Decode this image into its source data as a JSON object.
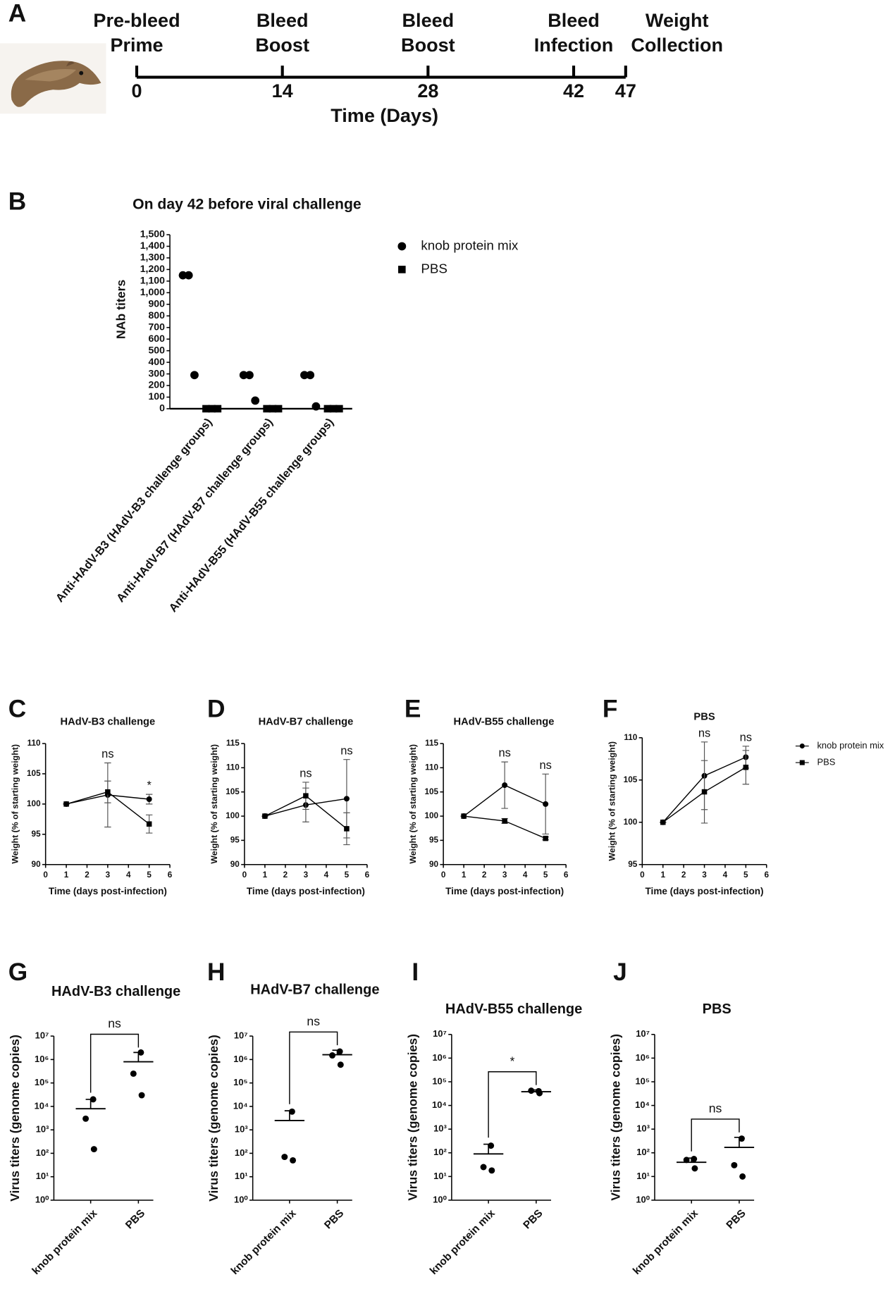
{
  "chart_data": [
    {
      "type": "timeline",
      "panel": "A",
      "xlabel": "Time (Days)",
      "xlim": [
        0,
        47
      ],
      "xticks": [
        0,
        14,
        28,
        42,
        47
      ],
      "events": [
        {
          "lines": [
            "Pre-bleed",
            "Prime"
          ]
        },
        {
          "lines": [
            "Bleed",
            "Boost"
          ]
        },
        {
          "lines": [
            "Bleed",
            "Boost"
          ]
        },
        {
          "lines": [
            "Bleed",
            "Infection"
          ]
        },
        {
          "lines": [
            "Weight",
            "Collection"
          ]
        }
      ]
    },
    {
      "type": "dot",
      "panel": "B",
      "title": "On day 42 before viral challenge",
      "ylabel": "NAb titers",
      "categories": [
        "Anti-HAdV-B3 (HAdV-B3 challenge groups)",
        "Anti-HAdV-B7 (HAdV-B7 challenge groups)",
        "Anti-HAdV-B55 (HAdV-B55 challenge groups)"
      ],
      "series": [
        {
          "name": "knob protein mix",
          "marker": "circle",
          "color": "#000000",
          "values": [
            [
              1150,
              1150,
              290
            ],
            [
              290,
              290,
              70
            ],
            [
              290,
              290,
              20
            ]
          ]
        },
        {
          "name": "PBS",
          "marker": "square",
          "color": "#000000",
          "values": [
            [
              0,
              0,
              0
            ],
            [
              0,
              0,
              0
            ],
            [
              0,
              0,
              0
            ]
          ]
        }
      ],
      "ylim": [
        0,
        1500
      ],
      "yticks": [
        0,
        100,
        200,
        300,
        400,
        500,
        600,
        700,
        800,
        900,
        {
          "value": 1000,
          "label": "1,000"
        },
        {
          "value": 1100,
          "label": "1,100"
        },
        {
          "value": 1200,
          "label": "1,200"
        },
        {
          "value": 1300,
          "label": "1,300"
        },
        {
          "value": 1400,
          "label": "1,400"
        },
        {
          "value": 1500,
          "label": "1,500"
        }
      ],
      "legend": "top-right"
    },
    {
      "type": "line",
      "panel": "C",
      "title": "HAdV-B3 challenge",
      "xlabel": "Time (days post-infection)",
      "ylabel": "Weight (% of starting weight)",
      "x": [
        1,
        3,
        5
      ],
      "xlim": [
        0,
        6
      ],
      "xticks": [
        0,
        1,
        2,
        3,
        4,
        5,
        6
      ],
      "ylim": [
        90,
        110
      ],
      "yticks": [
        90,
        95,
        100,
        105,
        110
      ],
      "series": [
        {
          "marker": "circle",
          "color": "#000000",
          "values": [
            100,
            101.5,
            100.8
          ],
          "errors": [
            0,
            5.3,
            0.8
          ]
        },
        {
          "marker": "square",
          "color": "#000000",
          "values": [
            100,
            102,
            96.7
          ],
          "errors": [
            0,
            1.8,
            1.5
          ]
        }
      ],
      "annotations": [
        {
          "x": 3,
          "text": "ns"
        },
        {
          "x": 5,
          "text": "*"
        }
      ]
    },
    {
      "type": "line",
      "panel": "D",
      "title": "HAdV-B7 challenge",
      "xlabel": "Time (days post-infection)",
      "ylabel": "Weight (% of starting weight)",
      "x": [
        1,
        3,
        5
      ],
      "xlim": [
        0,
        6
      ],
      "xticks": [
        0,
        1,
        2,
        3,
        4,
        5,
        6
      ],
      "ylim": [
        90,
        115
      ],
      "yticks": [
        90,
        95,
        100,
        105,
        110,
        115
      ],
      "series": [
        {
          "marker": "circle",
          "color": "#000000",
          "values": [
            100,
            102.3,
            103.6
          ],
          "errors": [
            0,
            3.5,
            8.1
          ]
        },
        {
          "marker": "square",
          "color": "#000000",
          "values": [
            100,
            104.2,
            97.4
          ],
          "errors": [
            0,
            2.8,
            3.3
          ]
        }
      ],
      "annotations": [
        {
          "x": 3,
          "text": "ns"
        },
        {
          "x": 5,
          "text": "ns"
        }
      ]
    },
    {
      "type": "line",
      "panel": "E",
      "title": "HAdV-B55 challenge",
      "xlabel": "Time (days post-infection)",
      "ylabel": "Weight (% of starting weight)",
      "x": [
        1,
        3,
        5
      ],
      "xlim": [
        0,
        6
      ],
      "xticks": [
        0,
        1,
        2,
        3,
        4,
        5,
        6
      ],
      "ylim": [
        90,
        115
      ],
      "yticks": [
        90,
        95,
        100,
        105,
        110,
        115
      ],
      "series": [
        {
          "marker": "circle",
          "color": "#000000",
          "values": [
            100,
            106.4,
            102.5
          ],
          "errors": [
            0,
            4.8,
            6.2
          ]
        },
        {
          "marker": "square",
          "color": "#000000",
          "values": [
            100,
            99,
            95.4
          ],
          "errors": [
            0,
            0.5,
            0.3
          ]
        }
      ],
      "annotations": [
        {
          "x": 3,
          "text": "ns"
        },
        {
          "x": 5,
          "text": "ns"
        }
      ]
    },
    {
      "type": "line",
      "panel": "F",
      "title": "PBS",
      "xlabel": "Time (days post-infection)",
      "ylabel": "Weight (% of starting weight)",
      "x": [
        1,
        3,
        5
      ],
      "xlim": [
        0,
        6
      ],
      "xticks": [
        0,
        1,
        2,
        3,
        4,
        5,
        6
      ],
      "ylim": [
        95,
        110
      ],
      "yticks": [
        95,
        100,
        105,
        110
      ],
      "series": [
        {
          "name": "knob protein mix",
          "marker": "circle",
          "color": "#000000",
          "values": [
            100,
            105.5,
            107.7
          ],
          "errors": [
            0,
            4,
            1.3
          ]
        },
        {
          "name": "PBS",
          "marker": "square",
          "color": "#000000",
          "values": [
            100,
            103.6,
            106.5
          ],
          "errors": [
            0,
            3.7,
            2
          ]
        }
      ],
      "annotations": [
        {
          "x": 3,
          "text": "ns"
        },
        {
          "x": 5,
          "text": "ns"
        }
      ],
      "legend": "right"
    },
    {
      "type": "strip",
      "panel": "G",
      "title": "HAdV-B3 challenge",
      "ylabel": "Virus titers (genome copies)",
      "log_scale": true,
      "categories": [
        "knob protein mix",
        "PBS"
      ],
      "values": [
        [
          20000,
          3000,
          150
        ],
        [
          2000000,
          250000,
          30000
        ]
      ],
      "means": [
        8000,
        800000
      ],
      "error_top": [
        20000,
        2000000
      ],
      "annotation": "ns",
      "color": "#000000",
      "ylim": [
        1,
        10000000
      ],
      "yticks": [
        {
          "value": 1,
          "label": "10⁰"
        },
        {
          "value": 10,
          "label": "10¹"
        },
        {
          "value": 100,
          "label": "10²"
        },
        {
          "value": 1000,
          "label": "10³"
        },
        {
          "value": 10000,
          "label": "10⁴"
        },
        {
          "value": 100000,
          "label": "10⁵"
        },
        {
          "value": 1000000,
          "label": "10⁶"
        },
        {
          "value": 10000000,
          "label": "10⁷"
        }
      ]
    },
    {
      "type": "strip",
      "panel": "H",
      "title": "HAdV-B7 challenge",
      "ylabel": "Virus titers (genome copies)",
      "log_scale": true,
      "categories": [
        "knob protein mix",
        "PBS"
      ],
      "values": [
        [
          6000,
          70,
          50
        ],
        [
          2200000,
          1500000,
          600000
        ]
      ],
      "means": [
        2500,
        1600000
      ],
      "error_top": [
        6500,
        2500000
      ],
      "annotation": "ns",
      "color": "#000000",
      "ylim": [
        1,
        10000000
      ],
      "yticks": [
        {
          "value": 1,
          "label": "10⁰"
        },
        {
          "value": 10,
          "label": "10¹"
        },
        {
          "value": 100,
          "label": "10²"
        },
        {
          "value": 1000,
          "label": "10³"
        },
        {
          "value": 10000,
          "label": "10⁴"
        },
        {
          "value": 100000,
          "label": "10⁵"
        },
        {
          "value": 1000000,
          "label": "10⁶"
        },
        {
          "value": 10000000,
          "label": "10⁷"
        }
      ]
    },
    {
      "type": "strip",
      "panel": "I",
      "title": "HAdV-B55 challenge",
      "ylabel": "Virus titers (genome copies)",
      "log_scale": true,
      "categories": [
        "knob protein mix",
        "PBS"
      ],
      "values": [
        [
          200,
          25,
          18
        ],
        [
          40000,
          42000,
          33000
        ]
      ],
      "means": [
        90,
        38000
      ],
      "error_top": [
        230,
        45000
      ],
      "annotation": "*",
      "color": "#000000",
      "ylim": [
        1,
        10000000
      ],
      "yticks": [
        {
          "value": 1,
          "label": "10⁰"
        },
        {
          "value": 10,
          "label": "10¹"
        },
        {
          "value": 100,
          "label": "10²"
        },
        {
          "value": 1000,
          "label": "10³"
        },
        {
          "value": 10000,
          "label": "10⁴"
        },
        {
          "value": 100000,
          "label": "10⁵"
        },
        {
          "value": 1000000,
          "label": "10⁶"
        },
        {
          "value": 10000000,
          "label": "10⁷"
        }
      ]
    },
    {
      "type": "strip",
      "panel": "J",
      "title": "PBS",
      "ylabel": "Virus titers (genome copies)",
      "log_scale": true,
      "categories": [
        "knob protein mix",
        "PBS"
      ],
      "values": [
        [
          55,
          50,
          22
        ],
        [
          400,
          30,
          10
        ]
      ],
      "means": [
        40,
        170
      ],
      "error_top": [
        60,
        450
      ],
      "annotation": "ns",
      "color": "#000000",
      "ylim": [
        1,
        10000000
      ],
      "yticks": [
        {
          "value": 1,
          "label": "10⁰"
        },
        {
          "value": 10,
          "label": "10¹"
        },
        {
          "value": 100,
          "label": "10²"
        },
        {
          "value": 1000,
          "label": "10³"
        },
        {
          "value": 10000,
          "label": "10⁴"
        },
        {
          "value": 100000,
          "label": "10⁵"
        },
        {
          "value": 1000000,
          "label": "10⁶"
        },
        {
          "value": 10000000,
          "label": "10⁷"
        }
      ]
    }
  ]
}
